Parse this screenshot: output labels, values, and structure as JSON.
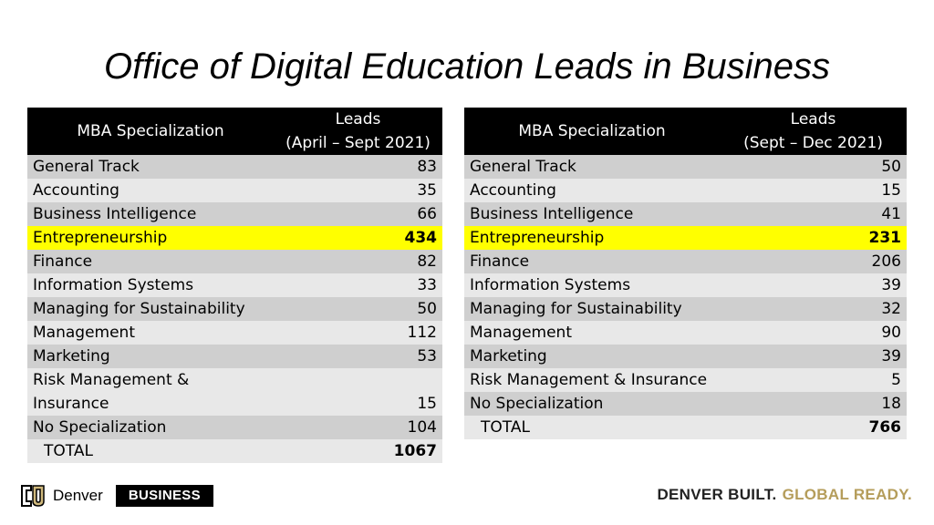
{
  "title": "Office of Digital Education Leads in Business",
  "tables": [
    {
      "header": {
        "col1": "MBA Specialization",
        "col2_line1": "Leads",
        "col2_line2": "(April – Sept 2021)"
      },
      "rows": [
        {
          "name": "General Track",
          "value": "83"
        },
        {
          "name": "Accounting",
          "value": "35"
        },
        {
          "name": "Business Intelligence",
          "value": "66"
        },
        {
          "name": "Entrepreneurship",
          "value": "434"
        },
        {
          "name": "Finance",
          "value": "82"
        },
        {
          "name": "Information Systems",
          "value": "33"
        },
        {
          "name": "Managing for Sustainability",
          "value": "50"
        },
        {
          "name": "Management",
          "value": "112"
        },
        {
          "name": "Marketing",
          "value": "53"
        },
        {
          "name": "Risk Management & Insurance",
          "value": "15"
        },
        {
          "name": "No Specialization",
          "value": "104"
        }
      ],
      "total": {
        "label": "TOTAL",
        "value": "1067"
      }
    },
    {
      "header": {
        "col1": "MBA Specialization",
        "col2_line1": "Leads",
        "col2_line2": "(Sept – Dec 2021)"
      },
      "rows": [
        {
          "name": "General Track",
          "value": "50"
        },
        {
          "name": "Accounting",
          "value": "15"
        },
        {
          "name": "Business Intelligence",
          "value": "41"
        },
        {
          "name": "Entrepreneurship",
          "value": "231"
        },
        {
          "name": "Finance",
          "value": "206"
        },
        {
          "name": "Information Systems",
          "value": "39"
        },
        {
          "name": "Managing for Sustainability",
          "value": "32"
        },
        {
          "name": "Management",
          "value": "90"
        },
        {
          "name": "Marketing",
          "value": "39"
        },
        {
          "name": "Risk Management & Insurance",
          "value": "5"
        },
        {
          "name": "No Specialization",
          "value": "18"
        }
      ],
      "total": {
        "label": "TOTAL",
        "value": "766"
      }
    }
  ],
  "footer": {
    "logo_icon": "cu-logo-icon",
    "logo_text": "Denver",
    "business_label": "BUSINESS",
    "tagline_part1": "DENVER BUILT.",
    "tagline_part2": "GLOBAL READY."
  },
  "colors": {
    "highlight": "#ffff00",
    "header_bg": "#000000",
    "gold": "#b59d5b"
  }
}
